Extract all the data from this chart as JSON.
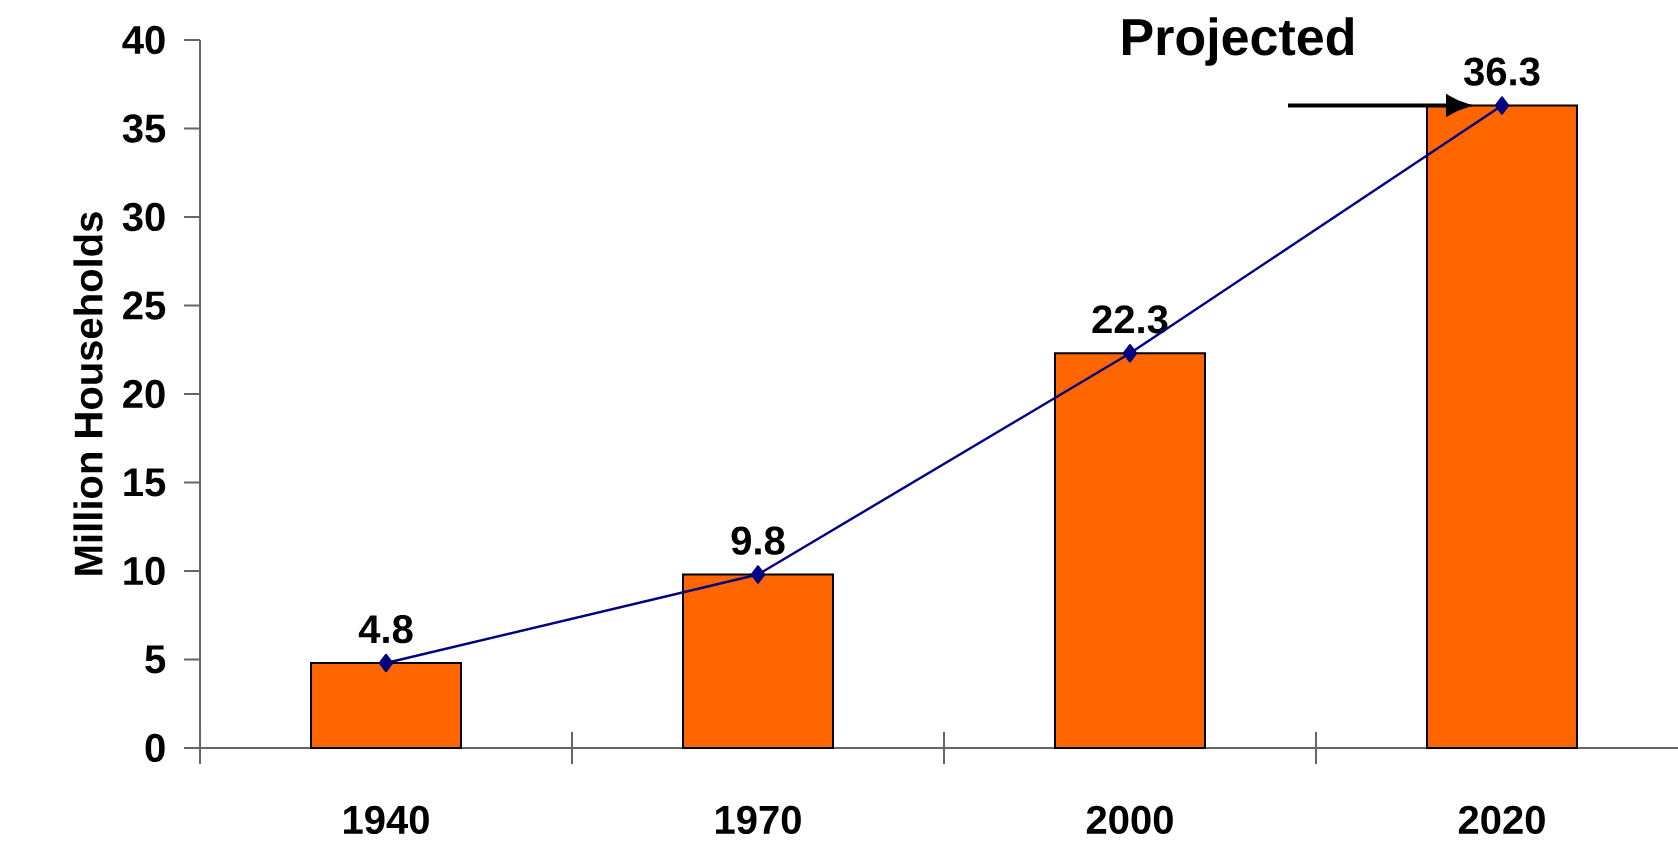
{
  "chart_data": {
    "type": "bar",
    "ylabel": "Million Households",
    "categories": [
      "1940",
      "1970",
      "2000",
      "2020"
    ],
    "series": [
      {
        "color": "#ff6600",
        "values": [
          4.8,
          9.8,
          22.3,
          36.3
        ],
        "value_labels": [
          "4.8",
          "9.8",
          "22.3",
          "36.3"
        ]
      },
      {
        "type": "line",
        "color": "#000080",
        "marker": "diamond",
        "values": [
          4.8,
          9.8,
          22.3,
          36.3
        ]
      }
    ],
    "ylim": [
      0,
      40
    ],
    "yticks": [
      0,
      5,
      10,
      15,
      20,
      25,
      30,
      35,
      40
    ],
    "annotations": [
      {
        "text": "Projected",
        "x": "2020",
        "y": 36.3
      }
    ]
  }
}
